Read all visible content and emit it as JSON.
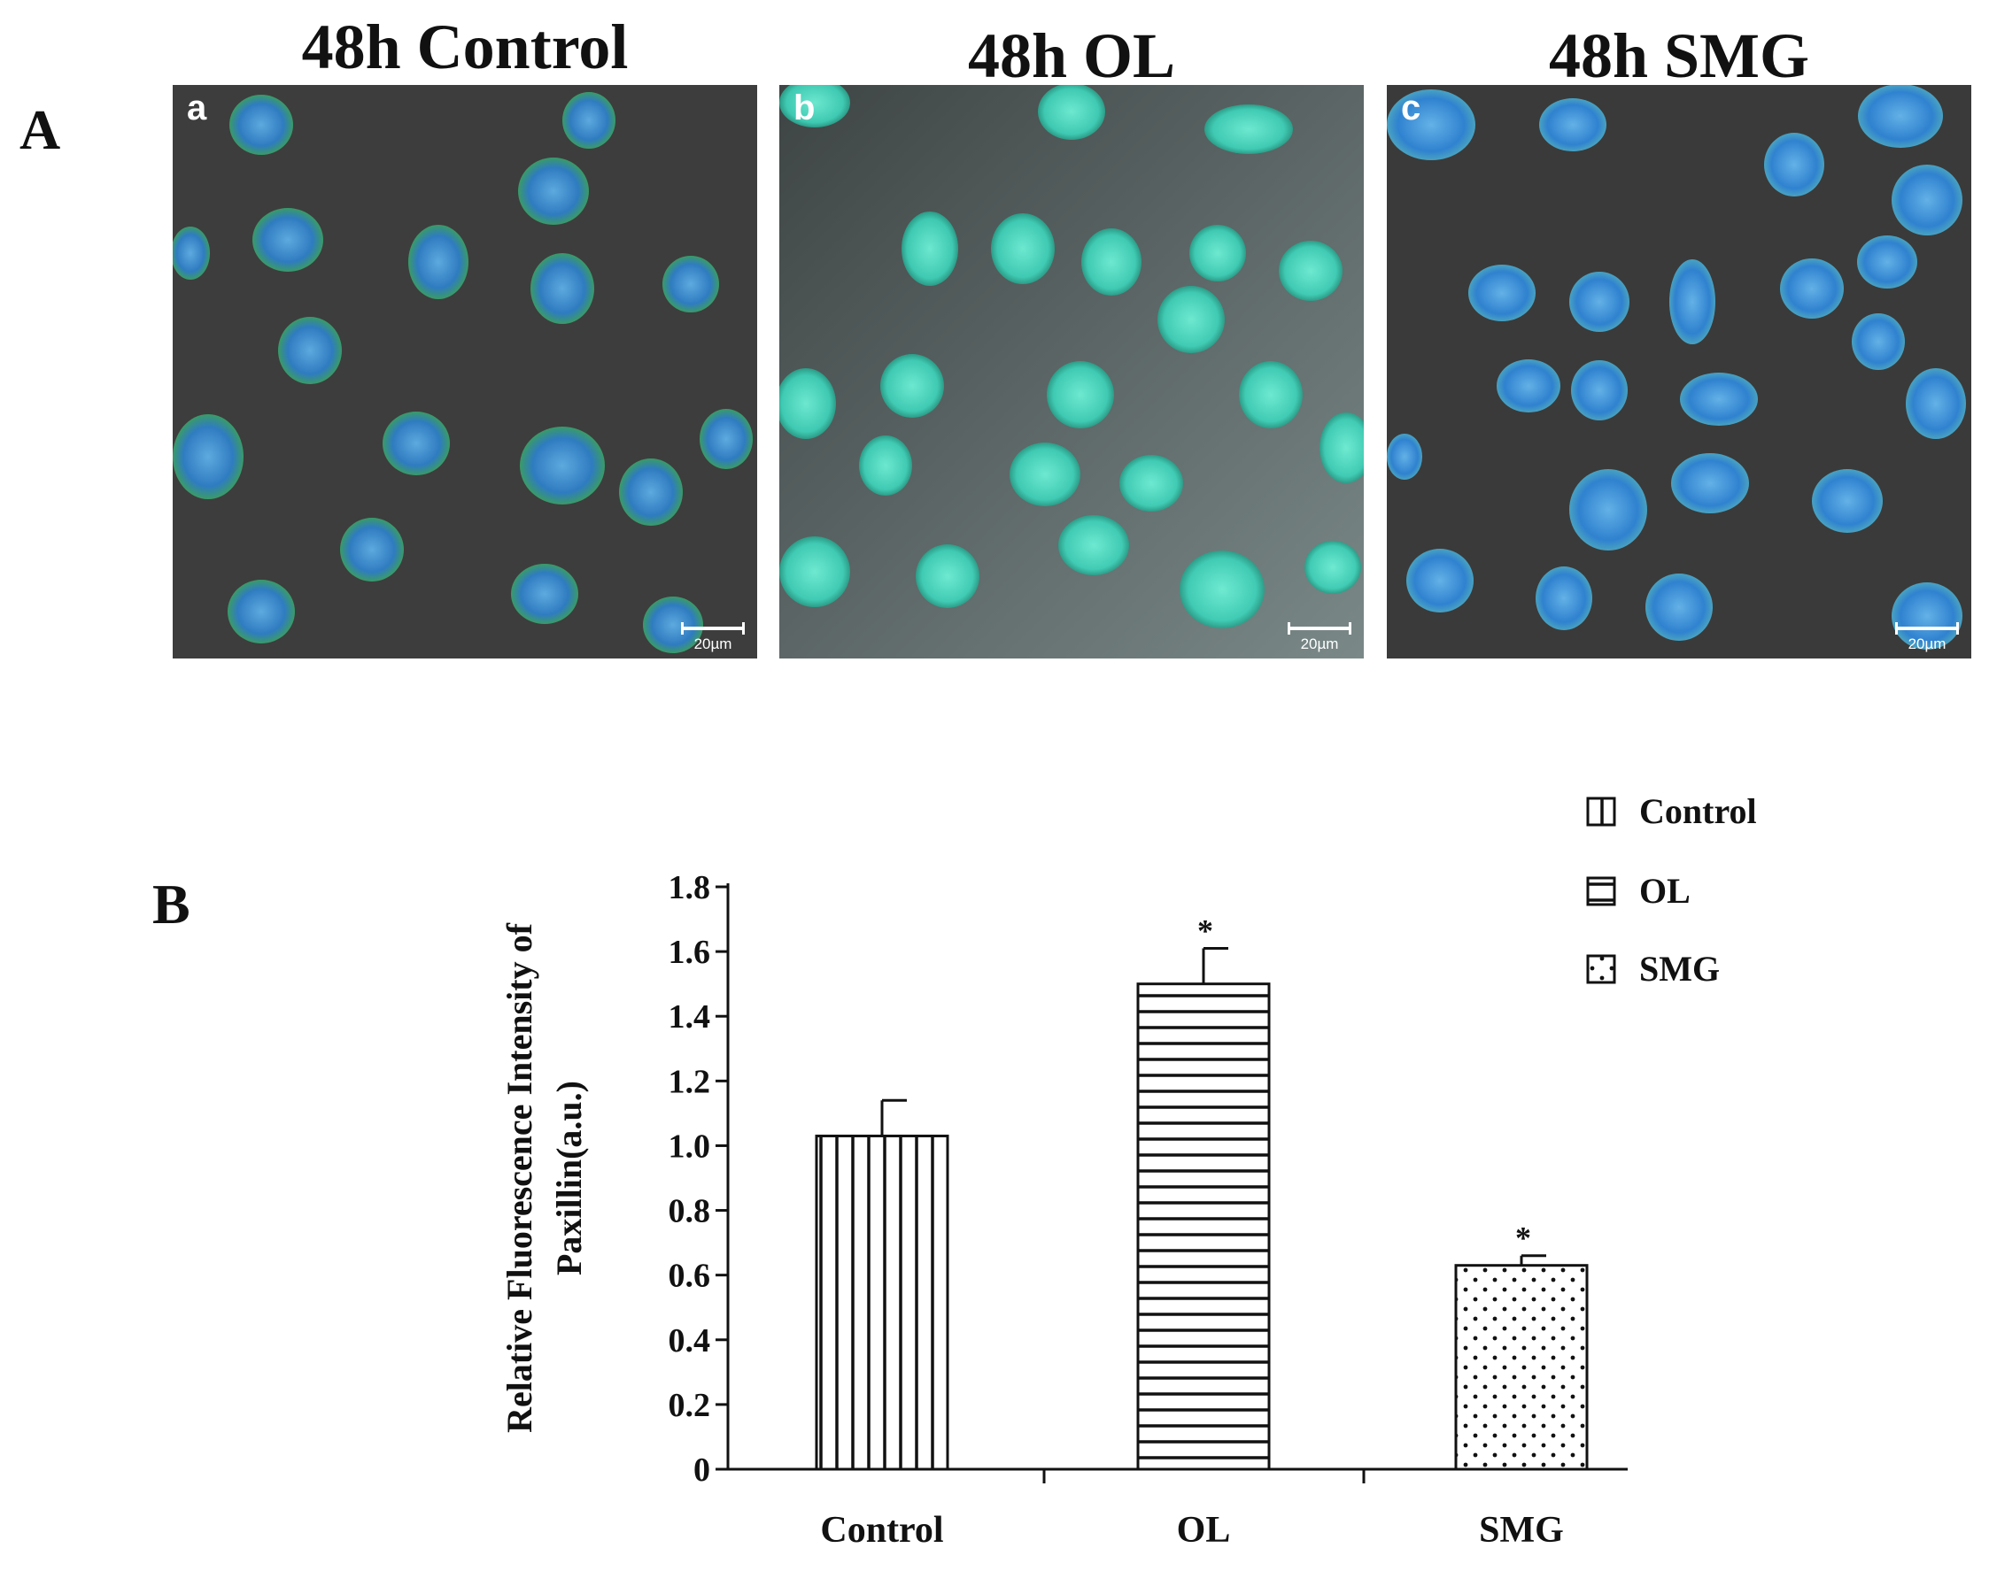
{
  "panel_a": {
    "letter": "A",
    "images": [
      {
        "title": "48h Control",
        "label": "a",
        "scale": "20µm"
      },
      {
        "title": "48h OL",
        "label": "b",
        "scale": "20µm"
      },
      {
        "title": "48h SMG",
        "label": "c",
        "scale": "20µm"
      }
    ]
  },
  "panel_b": {
    "letter": "B"
  },
  "chart_data": {
    "type": "bar",
    "categories": [
      "Control",
      "OL",
      "SMG"
    ],
    "values": [
      1.03,
      1.5,
      0.63
    ],
    "errors": [
      0.11,
      0.11,
      0.03
    ],
    "significance": [
      "",
      "*",
      "*"
    ],
    "patterns": [
      "vertical-lines",
      "horizontal-lines",
      "dots"
    ],
    "ylabel_line1": "Relative Fluorescence Intensity of",
    "ylabel_line2": "Paxillin(a.u.)",
    "ylim": [
      0,
      1.8
    ],
    "yticks": [
      "0",
      "0.2",
      "0.4",
      "0.6",
      "0.8",
      "1.0",
      "1.2",
      "1.4",
      "1.6",
      "1.8"
    ],
    "legend": [
      "Control",
      "OL",
      "SMG"
    ],
    "legend_position": "top-right",
    "grid": false
  }
}
